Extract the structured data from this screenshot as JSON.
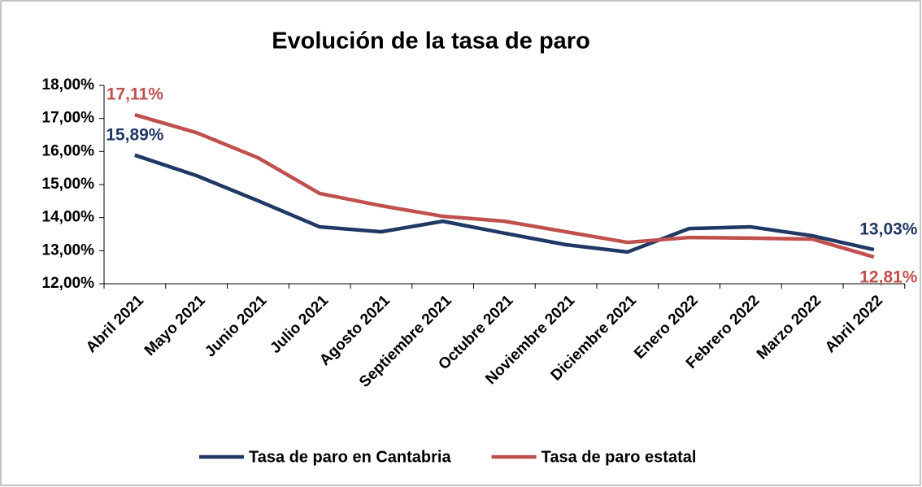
{
  "chart_data": {
    "type": "line",
    "title": "Evolución de la tasa de paro",
    "categories": [
      "Abril 2021",
      "Mayo 2021",
      "Junio 2021",
      "Julio 2021",
      "Agosto 2021",
      "Septiembre 2021",
      "Octubre 2021",
      "Noviembre 2021",
      "Diciembre 2021",
      "Enero 2022",
      "Febrero 2022",
      "Marzo 2022",
      "Abril 2022"
    ],
    "series": [
      {
        "name": "Tasa de paro en Cantabria",
        "color": "#1f3864",
        "values": [
          15.89,
          15.27,
          14.51,
          13.72,
          13.57,
          13.89,
          13.53,
          13.18,
          12.96,
          13.67,
          13.72,
          13.45,
          13.03
        ],
        "value_labels": [
          "15,89%",
          null,
          null,
          null,
          null,
          null,
          null,
          null,
          null,
          null,
          null,
          null,
          "13,03%"
        ]
      },
      {
        "name": "Tasa de paro estatal",
        "color": "#c0504d",
        "values": [
          17.11,
          16.57,
          15.81,
          14.73,
          14.36,
          14.04,
          13.89,
          13.57,
          13.25,
          13.4,
          13.38,
          13.35,
          12.81
        ],
        "value_labels": [
          "17,11%",
          null,
          null,
          null,
          null,
          null,
          null,
          null,
          null,
          null,
          null,
          null,
          "12,81%"
        ]
      }
    ],
    "ylim": [
      12,
      18
    ],
    "yticks": [
      {
        "value": 12,
        "label": "12,00%"
      },
      {
        "value": 13,
        "label": "13,00%"
      },
      {
        "value": 14,
        "label": "14,00%"
      },
      {
        "value": 15,
        "label": "15,00%"
      },
      {
        "value": 16,
        "label": "16,00%"
      },
      {
        "value": 17,
        "label": "17,00%"
      },
      {
        "value": 18,
        "label": "18,00%"
      }
    ],
    "legend": "bottom"
  }
}
